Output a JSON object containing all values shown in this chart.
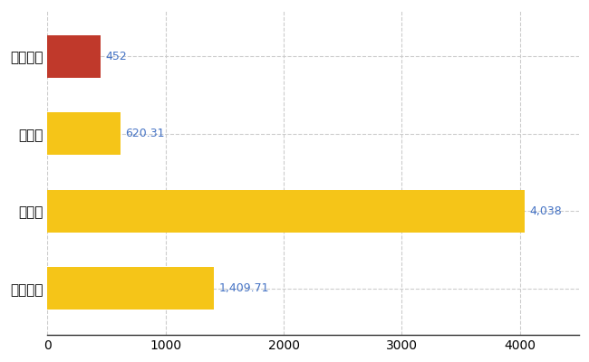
{
  "categories": [
    "尾花沢市",
    "県平均",
    "県最大",
    "全国平均"
  ],
  "values": [
    452,
    620.31,
    4038,
    1409.71
  ],
  "bar_colors": [
    "#c0392b",
    "#f5c518",
    "#f5c518",
    "#f5c518"
  ],
  "value_labels": [
    "452",
    "620.31",
    "4,038",
    "1,409.71"
  ],
  "value_label_color": "#4472c4",
  "xlim": [
    0,
    4500
  ],
  "xticks": [
    0,
    1000,
    2000,
    3000,
    4000
  ],
  "xtick_labels": [
    "0",
    "1000",
    "2000",
    "3000",
    "4000"
  ],
  "background_color": "#ffffff",
  "grid_color": "#cccccc",
  "bar_height": 0.55,
  "label_fontsize": 11,
  "tick_fontsize": 10,
  "value_label_fontsize": 9
}
